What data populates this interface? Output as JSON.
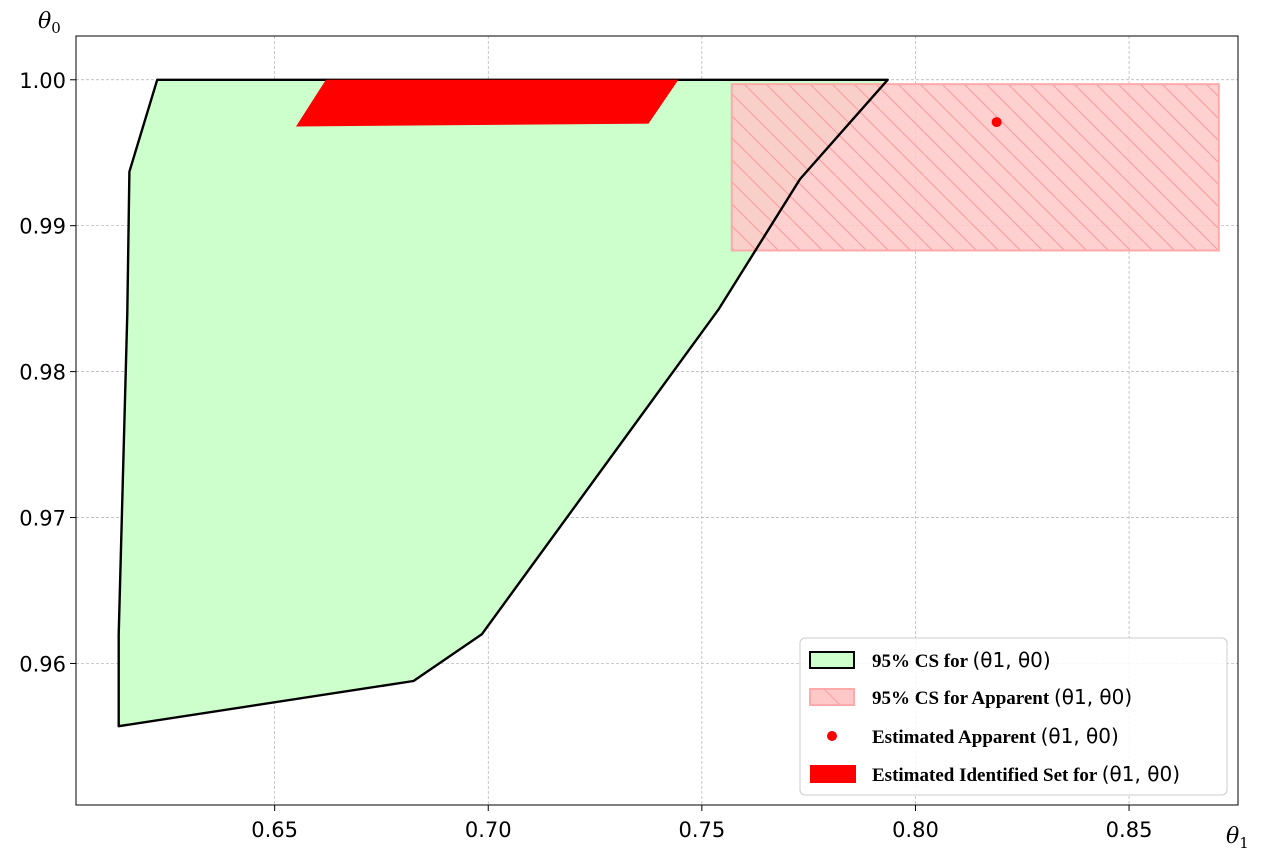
{
  "chart_data": {
    "type": "area",
    "xlabel": "θ1",
    "ylabel": "θ0",
    "xlim": [
      0.6035,
      0.8755
    ],
    "ylim": [
      0.9503,
      1.003
    ],
    "xticks": [
      0.65,
      0.7,
      0.75,
      0.8,
      0.85
    ],
    "xtick_labels": [
      "0.65",
      "0.70",
      "0.75",
      "0.80",
      "0.85"
    ],
    "yticks": [
      0.96,
      0.97,
      0.98,
      0.99,
      1.0
    ],
    "ytick_labels": [
      "0.96",
      "0.97",
      "0.98",
      "0.99",
      "1.00"
    ],
    "grid": true,
    "legend_position": "lower-right",
    "series": [
      {
        "name": "95% CS for",
        "math": "(θ1, θ0)",
        "kind": "polygon",
        "fill": "#ccffcc",
        "stroke": "#000000",
        "points": [
          [
            0.6225,
            1.0
          ],
          [
            0.7935,
            1.0
          ],
          [
            0.773,
            0.9932
          ],
          [
            0.754,
            0.9843
          ],
          [
            0.6985,
            0.962
          ],
          [
            0.6825,
            0.9588
          ],
          [
            0.6135,
            0.9557
          ],
          [
            0.6135,
            0.962
          ],
          [
            0.6155,
            0.984
          ],
          [
            0.616,
            0.9937
          ]
        ]
      },
      {
        "name": "95% CS for Apparent",
        "math": "(θ1, θ0)",
        "kind": "rect-hatched",
        "fill": "#ffc8c8",
        "stroke": "#ffaaaa",
        "x": [
          0.757,
          0.871
        ],
        "y": [
          0.9883,
          0.9997
        ]
      },
      {
        "name": "Estimated Apparent",
        "math": "(θ1, θ0)",
        "kind": "point",
        "color": "#ff0000",
        "x": 0.819,
        "y": 0.9971
      },
      {
        "name": "Estimated Identified Set for",
        "math": "(θ1, θ0)",
        "kind": "polygon",
        "fill": "#ff0000",
        "points": [
          [
            0.662,
            1.0
          ],
          [
            0.7445,
            1.0
          ],
          [
            0.7375,
            0.997
          ],
          [
            0.655,
            0.9968
          ]
        ]
      }
    ]
  }
}
